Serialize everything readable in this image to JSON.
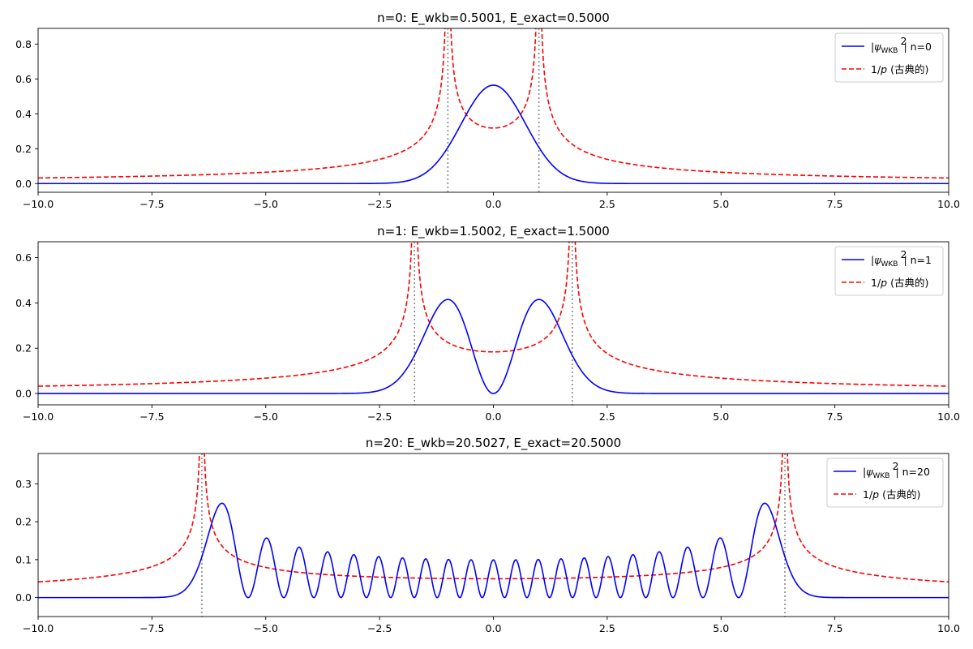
{
  "chart_data": [
    {
      "type": "line",
      "title": "n=0: E_wkb=0.5001, E_exact=0.5000",
      "n": 0,
      "energy": 0.5,
      "xlim": [
        -10,
        10
      ],
      "ylim": [
        -0.05,
        0.89
      ],
      "x_ticks": [
        -10,
        -7.5,
        -5,
        -2.5,
        0,
        2.5,
        5,
        7.5,
        10
      ],
      "x_tick_labels": [
        "−10.0",
        "−7.5",
        "−5.0",
        "−2.5",
        "0.0",
        "2.5",
        "5.0",
        "7.5",
        "10.0"
      ],
      "y_ticks": [
        0,
        0.2,
        0.4,
        0.6,
        0.8
      ],
      "y_tick_labels": [
        "0.0",
        "0.2",
        "0.4",
        "0.6",
        "0.8"
      ],
      "turning_points": [
        -1.0,
        1.0
      ],
      "legend_position": "top-right",
      "series": [
        {
          "name": "|ψWKB|² n=0",
          "style": "solid",
          "color": "#0000ff"
        },
        {
          "name": "1/p (古典的)",
          "style": "dashed",
          "color": "#ff0000"
        }
      ],
      "legend": {
        "psi_main": "|ψ",
        "psi_sub": "WKB",
        "psi_tail": "| n=0",
        "inv_main": "1/",
        "inv_p": "p",
        "inv_tail": " (古典的)"
      }
    },
    {
      "type": "line",
      "title": "n=1: E_wkb=1.5002, E_exact=1.5000",
      "n": 1,
      "energy": 1.5,
      "xlim": [
        -10,
        10
      ],
      "ylim": [
        -0.05,
        0.67
      ],
      "x_ticks": [
        -10,
        -7.5,
        -5,
        -2.5,
        0,
        2.5,
        5,
        7.5,
        10
      ],
      "x_tick_labels": [
        "−10.0",
        "−7.5",
        "−5.0",
        "−2.5",
        "0.0",
        "2.5",
        "5.0",
        "7.5",
        "10.0"
      ],
      "y_ticks": [
        0,
        0.2,
        0.4,
        0.6
      ],
      "y_tick_labels": [
        "0.0",
        "0.2",
        "0.4",
        "0.6"
      ],
      "turning_points": [
        -1.732,
        1.732
      ],
      "legend_position": "top-right",
      "series": [
        {
          "name": "|ψWKB|² n=1",
          "style": "solid",
          "color": "#0000ff"
        },
        {
          "name": "1/p (古典的)",
          "style": "dashed",
          "color": "#ff0000"
        }
      ],
      "legend": {
        "psi_main": "|ψ",
        "psi_sub": "WKB",
        "psi_tail": "| n=1",
        "inv_main": "1/",
        "inv_p": "p",
        "inv_tail": " (古典的)"
      }
    },
    {
      "type": "line",
      "title": "n=20: E_wkb=20.5027, E_exact=20.5000",
      "n": 20,
      "energy": 20.5,
      "xlim": [
        -10,
        10
      ],
      "ylim": [
        -0.05,
        0.38
      ],
      "x_ticks": [
        -10,
        -7.5,
        -5,
        -2.5,
        0,
        2.5,
        5,
        7.5,
        10
      ],
      "x_tick_labels": [
        "−10.0",
        "−7.5",
        "−5.0",
        "−2.5",
        "0.0",
        "2.5",
        "5.0",
        "7.5",
        "10.0"
      ],
      "y_ticks": [
        0,
        0.1,
        0.2,
        0.3
      ],
      "y_tick_labels": [
        "0.0",
        "0.1",
        "0.2",
        "0.3"
      ],
      "turning_points": [
        -6.403,
        6.403
      ],
      "legend_position": "top-right",
      "series": [
        {
          "name": "|ψWKB|² n=20",
          "style": "solid",
          "color": "#0000ff"
        },
        {
          "name": "1/p (古典的)",
          "style": "dashed",
          "color": "#ff0000"
        }
      ],
      "legend": {
        "psi_main": "|ψ",
        "psi_sub": "WKB",
        "psi_tail": "| n=20",
        "inv_main": "1/",
        "inv_p": "p",
        "inv_tail": " (古典的)"
      }
    }
  ]
}
